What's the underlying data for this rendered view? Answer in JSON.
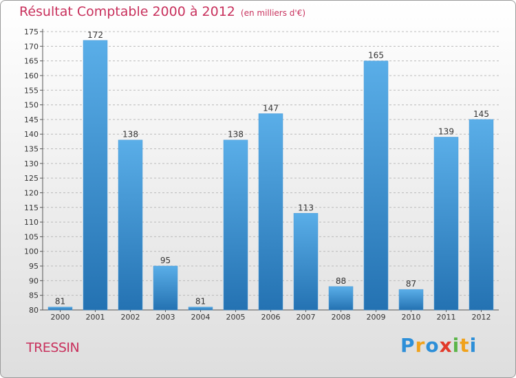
{
  "title": "Résultat Comptable 2000 à 2012",
  "subtitle": "(en milliers d'€)",
  "commune": "TRESSIN",
  "logo": {
    "letters": [
      {
        "ch": "P",
        "color": "#2d8fd8"
      },
      {
        "ch": "r",
        "color": "#f0a21c"
      },
      {
        "ch": "o",
        "color": "#2d8fd8"
      },
      {
        "ch": "x",
        "color": "#e23a2a"
      },
      {
        "ch": "i",
        "color": "#5cb54a"
      },
      {
        "ch": "t",
        "color": "#f0a21c"
      },
      {
        "ch": "i",
        "color": "#2d8fd8"
      }
    ]
  },
  "colors": {
    "title": "#c8305c",
    "bar_light": "#5aaee8",
    "bar_dark": "#2472b2",
    "grid": "#bbbbbb"
  },
  "chart_data": {
    "type": "bar",
    "categories": [
      "2000",
      "2001",
      "2002",
      "2003",
      "2004",
      "2005",
      "2006",
      "2007",
      "2008",
      "2009",
      "2010",
      "2011",
      "2012"
    ],
    "values": [
      81,
      172,
      138,
      95,
      81,
      138,
      147,
      113,
      88,
      165,
      87,
      139,
      145
    ],
    "ylim": [
      80,
      175
    ],
    "yticks": [
      80,
      85,
      90,
      95,
      100,
      105,
      110,
      115,
      120,
      125,
      130,
      135,
      140,
      145,
      150,
      155,
      160,
      165,
      170,
      175
    ],
    "grid": "horizontal dashed",
    "legend": "none"
  }
}
